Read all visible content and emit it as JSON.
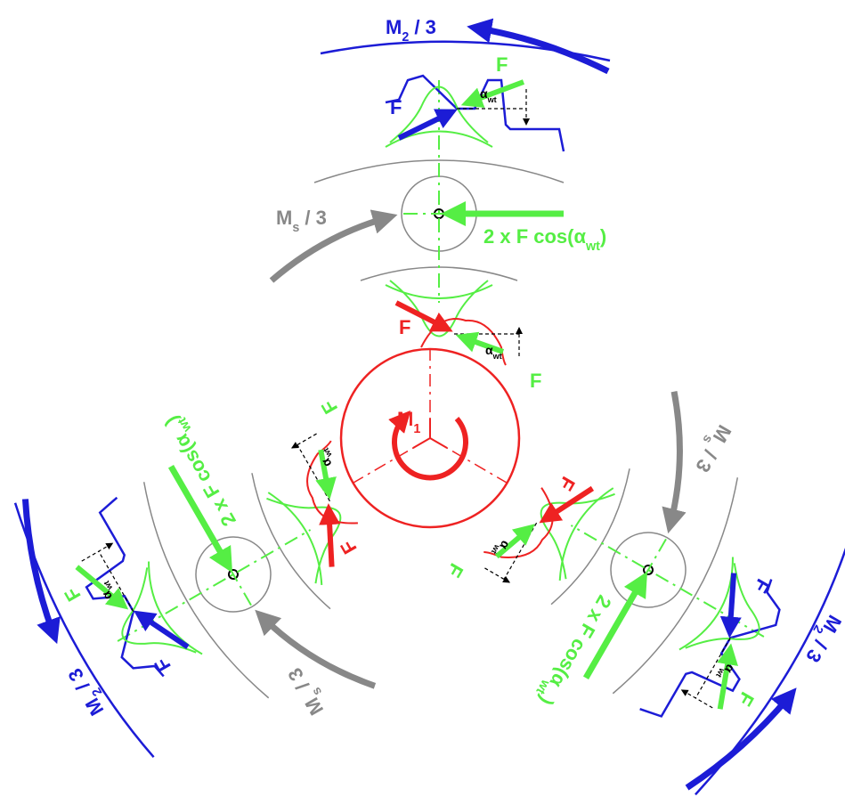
{
  "sun": {
    "torque": {
      "symbol": "M",
      "sub": "1"
    }
  },
  "planets": [
    {
      "ring_torque": {
        "symbol": "M",
        "sub": "2",
        "rest": " / 3"
      },
      "carrier_torque": {
        "symbol": "M",
        "sub": "s",
        "rest": " / 3"
      },
      "bearing_force": {
        "text": "2 x F cos(α",
        "sub": "wt",
        "end": ")"
      },
      "ring_mesh": {
        "force_ring": "F",
        "force_planet": "F",
        "angle": {
          "symbol": "α",
          "sub": "wt"
        }
      },
      "sun_mesh": {
        "force_sun": "F",
        "force_planet": "F",
        "angle": {
          "symbol": "α",
          "sub": "wt"
        }
      }
    },
    {
      "ring_torque": {
        "symbol": "M",
        "sub": "2",
        "rest": " / 3"
      },
      "carrier_torque": {
        "symbol": "M",
        "sub": "s",
        "rest": " / 3"
      },
      "bearing_force": {
        "text": "2 x F cos(α",
        "sub": "wt",
        "end": ")"
      },
      "ring_mesh": {
        "force_ring": "F",
        "force_planet": "F",
        "angle": {
          "symbol": "α",
          "sub": "wt"
        }
      },
      "sun_mesh": {
        "force_sun": "F",
        "force_planet": "F",
        "angle": {
          "symbol": "α",
          "sub": "wt"
        }
      }
    },
    {
      "ring_torque": {
        "symbol": "M",
        "sub": "2",
        "rest": " / 3"
      },
      "carrier_torque": {
        "symbol": "M",
        "sub": "s",
        "rest": " / 3"
      },
      "bearing_force": {
        "text": "2 x F cos(α",
        "sub": "wt",
        "end": ")"
      },
      "ring_mesh": {
        "force_ring": "F",
        "force_planet": "F",
        "angle": {
          "symbol": "α",
          "sub": "wt"
        }
      },
      "sun_mesh": {
        "force_sun": "F",
        "force_planet": "F",
        "angle": {
          "symbol": "α",
          "sub": "wt"
        }
      }
    }
  ]
}
